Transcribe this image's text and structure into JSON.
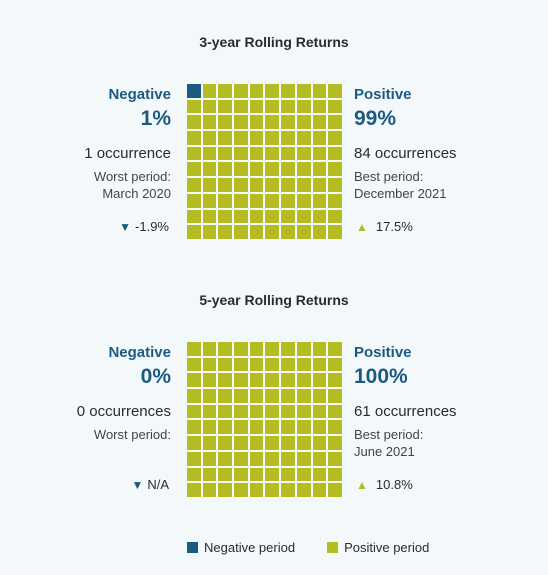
{
  "colors": {
    "negative": "#1d5a80",
    "positive": "#b3bd22"
  },
  "legend": {
    "negative": "Negative period",
    "positive": "Positive period"
  },
  "chart_data": [
    {
      "type": "waffle",
      "title": "3-year Rolling Returns",
      "cells": 100,
      "negative_cells": 1,
      "negative": {
        "label": "Negative",
        "percent": "1%",
        "occurrences": "1 occurrence",
        "period": "Worst period:\nMarch 2020",
        "return": "-1.9%"
      },
      "positive": {
        "label": "Positive",
        "percent": "99%",
        "occurrences": "84 occurrences",
        "period": "Best period:\nDecember 2021",
        "return": "17.5%"
      }
    },
    {
      "type": "waffle",
      "title": "5-year Rolling Returns",
      "cells": 100,
      "negative_cells": 0,
      "negative": {
        "label": "Negative",
        "percent": "0%",
        "occurrences": "0 occurrences",
        "period": "Worst period:",
        "return": "N/A"
      },
      "positive": {
        "label": "Positive",
        "percent": "100%",
        "occurrences": "61  occurrences",
        "period": "Best period:\nJune 2021",
        "return": "10.8%"
      }
    }
  ]
}
